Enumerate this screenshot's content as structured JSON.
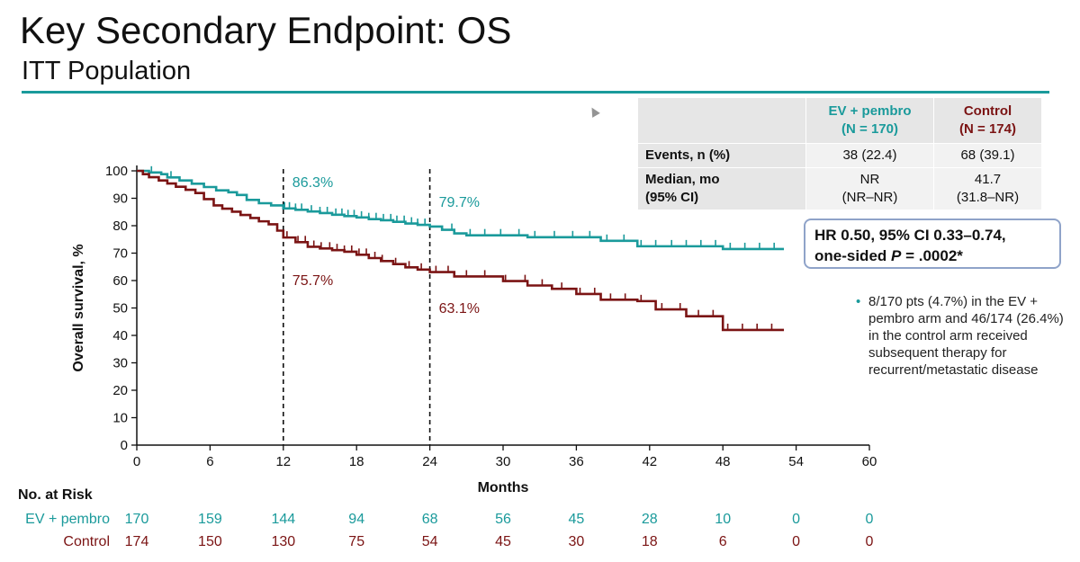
{
  "slide": {
    "title": "Key Secondary Endpoint: OS",
    "subtitle": "ITT Population",
    "accent_color": "#1a9a9b"
  },
  "results_table": {
    "col_ev": "EV + pembro",
    "col_ev_n": "(N = 170)",
    "col_ctrl": "Control",
    "col_ctrl_n": "(N = 174)",
    "row_events_label": "Events, n (%)",
    "row_events_ev": "38 (22.4)",
    "row_events_ctrl": "68 (39.1)",
    "row_median_label1": "Median, mo",
    "row_median_label2": "(95% CI)",
    "row_median_ev1": "NR",
    "row_median_ev2": "(NR–NR)",
    "row_median_ctrl1": "41.7",
    "row_median_ctrl2": "(31.8–NR)"
  },
  "hr_box": {
    "line1": "HR 0.50, 95% CI 0.33–0.74,",
    "line2_pre": "one-sided ",
    "line2_p": "P",
    "line2_post": " = .0002*"
  },
  "note": {
    "text": "8/170 pts (4.7%) in the EV + pembro arm and 46/174 (26.4%) in the control arm received subsequent therapy for recurrent/metastatic disease"
  },
  "chart_data": {
    "type": "line",
    "xlabel": "Months",
    "ylabel": "Overall survival, %",
    "xlim": [
      0,
      60
    ],
    "ylim": [
      0,
      100
    ],
    "xticks": [
      0,
      6,
      12,
      18,
      24,
      30,
      36,
      42,
      48,
      54,
      60
    ],
    "yticks": [
      0,
      10,
      20,
      30,
      40,
      50,
      60,
      70,
      80,
      90,
      100
    ],
    "reference_lines_x": [
      12,
      24
    ],
    "landmark_labels": [
      {
        "series": "EV + pembro",
        "x": 12,
        "text": "86.3%"
      },
      {
        "series": "EV + pembro",
        "x": 24,
        "text": "79.7%"
      },
      {
        "series": "Control",
        "x": 12,
        "text": "75.7%"
      },
      {
        "series": "Control",
        "x": 24,
        "text": "63.1%"
      }
    ],
    "series": [
      {
        "name": "EV + pembro",
        "color": "#1a9a9b",
        "x": [
          0,
          1,
          2,
          2.5,
          3.5,
          4.5,
          5.5,
          6.5,
          7.5,
          8.2,
          9,
          10,
          11,
          12,
          13,
          14,
          15,
          16,
          17,
          18,
          19,
          20,
          21,
          22,
          23,
          24,
          25,
          26,
          27,
          29,
          32,
          35,
          38,
          41,
          44,
          48,
          50,
          53
        ],
        "y": [
          100,
          99.4,
          98.8,
          97.6,
          96.5,
          95.3,
          94.1,
          92.9,
          92.2,
          91.2,
          89.4,
          88.2,
          87.4,
          86.3,
          85.8,
          85.2,
          84.6,
          84.0,
          83.5,
          83.0,
          82.4,
          82.0,
          81.4,
          80.8,
          80.3,
          79.7,
          78.5,
          77.2,
          76.5,
          76.5,
          75.8,
          75.8,
          74.5,
          72.5,
          72.5,
          71.5,
          71.5,
          71.5
        ],
        "censors": [
          1.2,
          2.8,
          12.1,
          12.5,
          13,
          13.5,
          14.3,
          15,
          15.6,
          16.3,
          16.8,
          17.3,
          17.8,
          18.4,
          19,
          19.6,
          20.2,
          20.8,
          21.3,
          21.9,
          22.5,
          23,
          23.6,
          25.8,
          27.3,
          28.5,
          29.8,
          31.3,
          32.6,
          34.2,
          35.7,
          37.1,
          38.5,
          39.9,
          41.3,
          42.5,
          43.8,
          45,
          46.2,
          47.4,
          48.6,
          49.8,
          51,
          52.2
        ]
      },
      {
        "name": "Control",
        "color": "#7b1414",
        "x": [
          0,
          0.5,
          1,
          1.8,
          2.5,
          3.2,
          4,
          4.8,
          5.5,
          6.3,
          7,
          7.8,
          8.5,
          9.3,
          10,
          10.8,
          11.5,
          12,
          13,
          14,
          15,
          16,
          17,
          18,
          19,
          20,
          21,
          22,
          23,
          24,
          26,
          28,
          30,
          32,
          34,
          36,
          38,
          41,
          42.5,
          45,
          48,
          50,
          53
        ],
        "y": [
          100,
          98.8,
          97.7,
          96.5,
          95.4,
          94.2,
          93.1,
          91.9,
          89.7,
          87.4,
          86.2,
          85.1,
          83.9,
          82.8,
          81.6,
          80.5,
          78.2,
          75.7,
          74.0,
          72.3,
          71.7,
          71.1,
          70.5,
          69.4,
          68.2,
          67.1,
          66.0,
          64.8,
          64.0,
          63.1,
          61.5,
          61.5,
          59.8,
          58.2,
          57.0,
          55.1,
          53.0,
          52.5,
          49.5,
          47.0,
          42.0,
          42.0,
          42.0
        ],
        "censors": [
          12.3,
          13.2,
          13.8,
          14.5,
          15.1,
          15.8,
          16.4,
          17,
          17.6,
          18.2,
          18.8,
          19.5,
          20.1,
          21.2,
          22.3,
          23.3,
          24.5,
          25.5,
          27,
          28.5,
          30.2,
          31.8,
          33.2,
          34.8,
          36.3,
          37.5,
          38.8,
          40,
          41.3,
          43,
          44.5,
          46,
          47.2,
          48.4,
          49.6,
          50.8,
          52
        ]
      }
    ],
    "risk_table": {
      "title": "No. at Risk",
      "times": [
        0,
        6,
        12,
        18,
        24,
        30,
        36,
        42,
        48,
        54,
        60
      ],
      "rows": [
        {
          "label": "EV + pembro",
          "color": "#1a9a9b",
          "values": [
            "170",
            "159",
            "144",
            "94",
            "68",
            "56",
            "45",
            "28",
            "10",
            "0",
            "0"
          ]
        },
        {
          "label": "Control",
          "color": "#7b1414",
          "values": [
            "174",
            "150",
            "130",
            "75",
            "54",
            "45",
            "30",
            "18",
            "6",
            "0",
            "0"
          ]
        }
      ]
    }
  }
}
